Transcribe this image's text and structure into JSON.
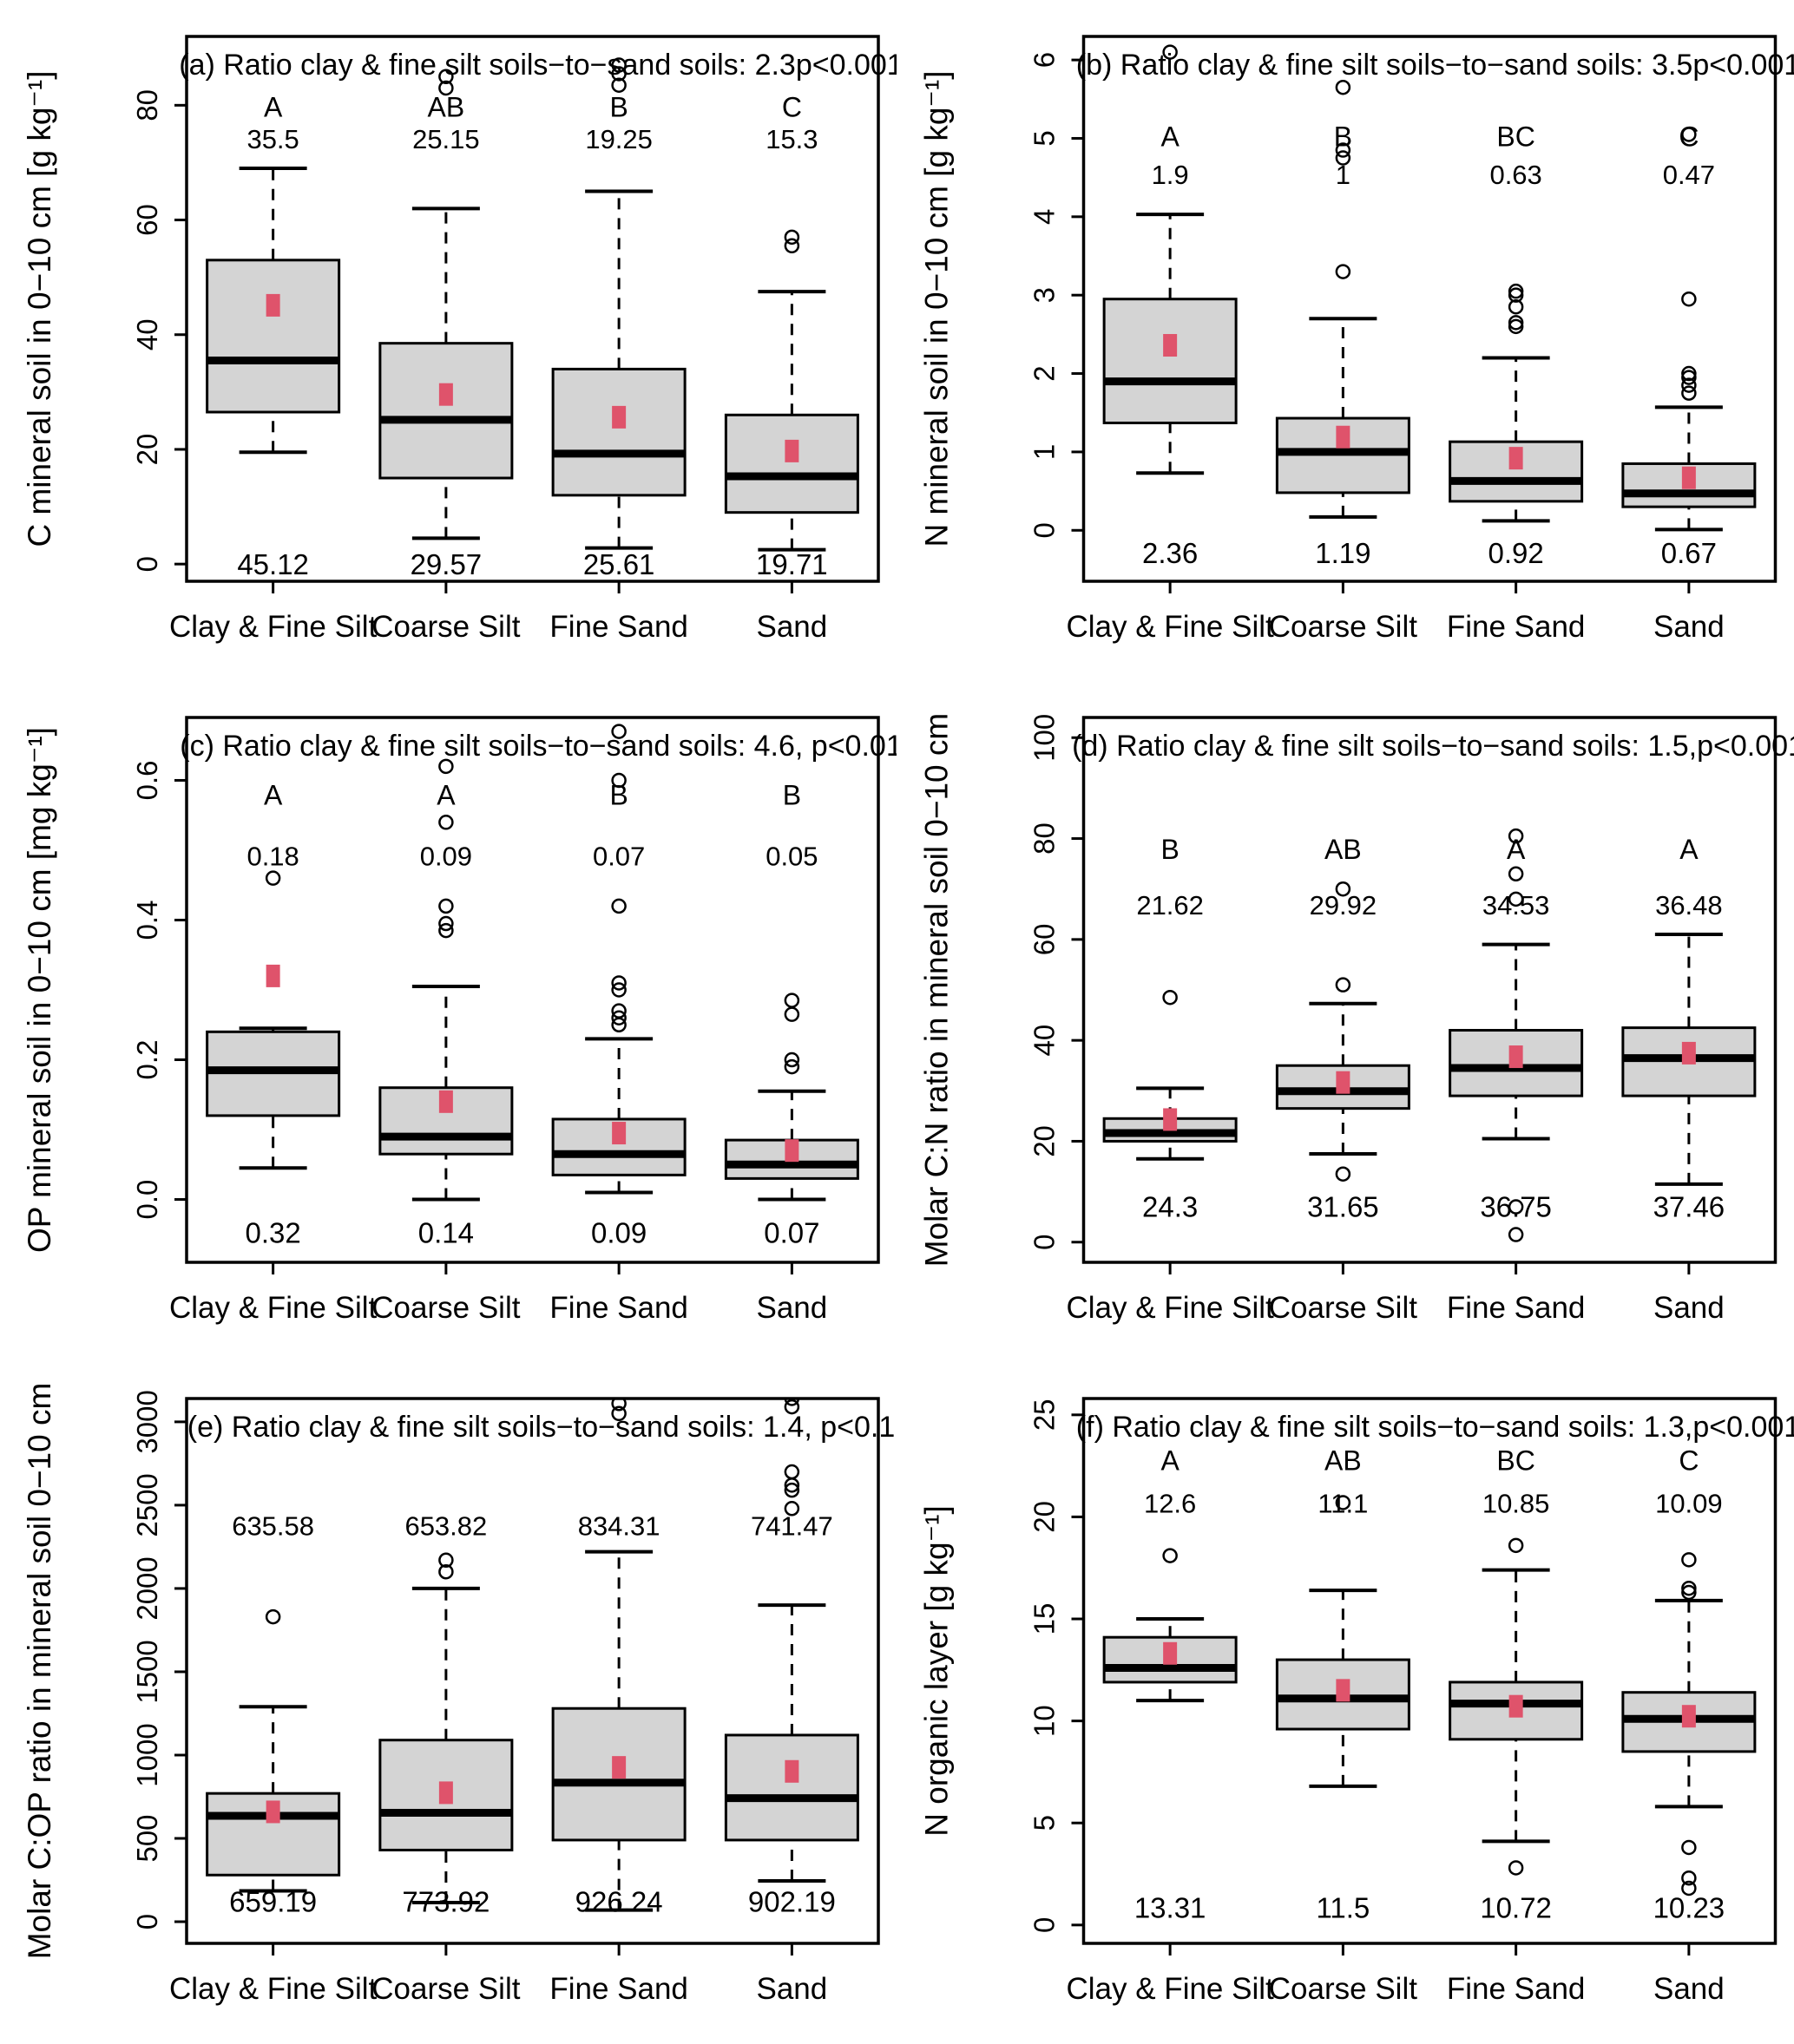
{
  "figure": {
    "categories": [
      "Clay & Fine Silt",
      "Coarse Silt",
      "Fine Sand",
      "Sand"
    ],
    "style": {
      "box_fill": "#d4d4d4",
      "line_color": "#000000",
      "mean_color": "#df536b",
      "background": "#ffffff"
    }
  },
  "chart_data": [
    {
      "type": "boxplot",
      "panel": "a",
      "title": "(a)  Ratio clay & fine silt soils−to−sand soils: 2.3p<0.001",
      "ylabel": "C mineral soil in 0−10 cm [g  kg⁻¹]",
      "ylim": [
        -3,
        92
      ],
      "ytick_values": [
        0,
        20,
        40,
        60,
        80
      ],
      "ytick_labels": [
        "0",
        "20",
        "40",
        "60",
        "80"
      ],
      "letter_y": 78,
      "median_label_y": 72.5,
      "mean_label_y": -1.8,
      "groups": [
        {
          "category": "Clay & Fine Silt",
          "letter": "A",
          "median_label": "35.5",
          "mean_label": "45.12",
          "mean": 45.12,
          "stats": {
            "q1": 26.5,
            "median": 35.5,
            "q3": 53,
            "whisker_low": 19.5,
            "whisker_high": 69
          },
          "outliers": []
        },
        {
          "category": "Coarse Silt",
          "letter": "AB",
          "median_label": "25.15",
          "mean_label": "29.57",
          "mean": 29.57,
          "stats": {
            "q1": 15,
            "median": 25.15,
            "q3": 38.5,
            "whisker_low": 4.5,
            "whisker_high": 62
          },
          "outliers": [
            83,
            85
          ]
        },
        {
          "category": "Fine Sand",
          "letter": "B",
          "median_label": "19.25",
          "mean_label": "25.61",
          "mean": 25.61,
          "stats": {
            "q1": 12,
            "median": 19.25,
            "q3": 34,
            "whisker_low": 2.8,
            "whisker_high": 65
          },
          "outliers": [
            83.5,
            85.5,
            87
          ]
        },
        {
          "category": "Sand",
          "letter": "C",
          "median_label": "15.3",
          "mean_label": "19.71",
          "mean": 19.71,
          "stats": {
            "q1": 9,
            "median": 15.3,
            "q3": 26,
            "whisker_low": 2.5,
            "whisker_high": 47.5
          },
          "outliers": [
            55.5,
            57
          ]
        }
      ]
    },
    {
      "type": "boxplot",
      "panel": "b",
      "title": "(b)  Ratio clay & fine silt soils−to−sand soils: 3.5p<0.001",
      "ylabel": "N mineral soil in 0−10 cm [g  kg⁻¹]",
      "ylim": [
        -0.65,
        6.3
      ],
      "ytick_values": [
        0,
        1,
        2,
        3,
        4,
        5,
        6
      ],
      "ytick_labels": [
        "0",
        "1",
        "2",
        "3",
        "4",
        "5",
        "6"
      ],
      "letter_y": 4.9,
      "median_label_y": 4.42,
      "mean_label_y": -0.42,
      "groups": [
        {
          "category": "Clay & Fine Silt",
          "letter": "A",
          "median_label": "1.9",
          "mean_label": "2.36",
          "mean": 2.36,
          "stats": {
            "q1": 1.37,
            "median": 1.9,
            "q3": 2.95,
            "whisker_low": 0.73,
            "whisker_high": 4.03
          },
          "outliers": [
            6.1
          ]
        },
        {
          "category": "Coarse Silt",
          "letter": "B",
          "median_label": "1",
          "mean_label": "1.19",
          "mean": 1.19,
          "stats": {
            "q1": 0.48,
            "median": 1.0,
            "q3": 1.43,
            "whisker_low": 0.17,
            "whisker_high": 2.7
          },
          "outliers": [
            3.3,
            4.75,
            4.85,
            5.65
          ]
        },
        {
          "category": "Fine Sand",
          "letter": "BC",
          "median_label": "0.63",
          "mean_label": "0.92",
          "mean": 0.92,
          "stats": {
            "q1": 0.37,
            "median": 0.63,
            "q3": 1.13,
            "whisker_low": 0.12,
            "whisker_high": 2.2
          },
          "outliers": [
            2.6,
            2.65,
            2.85,
            3.0,
            3.05
          ]
        },
        {
          "category": "Sand",
          "letter": "C",
          "median_label": "0.47",
          "mean_label": "0.67",
          "mean": 0.67,
          "stats": {
            "q1": 0.3,
            "median": 0.47,
            "q3": 0.85,
            "whisker_low": 0.01,
            "whisker_high": 1.57
          },
          "outliers": [
            1.75,
            1.85,
            1.95,
            2.0,
            2.95,
            5.05
          ]
        }
      ]
    },
    {
      "type": "boxplot",
      "panel": "c",
      "title": "(c)  Ratio clay & fine silt soils−to−sand soils: 4.6, p<0.01",
      "ylabel": "OP mineral soil in 0−10 cm [mg  kg⁻¹]",
      "ylim": [
        -0.09,
        0.69
      ],
      "ytick_values": [
        0.0,
        0.2,
        0.4,
        0.6
      ],
      "ytick_labels": [
        "0.0",
        "0.2",
        "0.4",
        "0.6"
      ],
      "letter_y": 0.565,
      "median_label_y": 0.478,
      "mean_label_y": -0.062,
      "groups": [
        {
          "category": "Clay & Fine Silt",
          "letter": "A",
          "median_label": "0.18",
          "mean_label": "0.32",
          "mean": 0.32,
          "stats": {
            "q1": 0.12,
            "median": 0.185,
            "q3": 0.24,
            "whisker_low": 0.045,
            "whisker_high": 0.245
          },
          "outliers": [
            0.46
          ]
        },
        {
          "category": "Coarse Silt",
          "letter": "A",
          "median_label": "0.09",
          "mean_label": "0.14",
          "mean": 0.14,
          "stats": {
            "q1": 0.065,
            "median": 0.09,
            "q3": 0.16,
            "whisker_low": 0.0,
            "whisker_high": 0.305
          },
          "outliers": [
            0.385,
            0.395,
            0.42,
            0.54,
            0.62
          ]
        },
        {
          "category": "Fine Sand",
          "letter": "B",
          "median_label": "0.07",
          "mean_label": "0.09",
          "mean": 0.095,
          "stats": {
            "q1": 0.035,
            "median": 0.065,
            "q3": 0.115,
            "whisker_low": 0.01,
            "whisker_high": 0.23
          },
          "outliers": [
            0.25,
            0.26,
            0.27,
            0.3,
            0.31,
            0.42,
            0.6,
            0.67
          ]
        },
        {
          "category": "Sand",
          "letter": "B",
          "median_label": "0.05",
          "mean_label": "0.07",
          "mean": 0.07,
          "stats": {
            "q1": 0.03,
            "median": 0.05,
            "q3": 0.085,
            "whisker_low": 0.0,
            "whisker_high": 0.155
          },
          "outliers": [
            0.19,
            0.2,
            0.265,
            0.285
          ]
        }
      ]
    },
    {
      "type": "boxplot",
      "panel": "d",
      "title": "(d)  Ratio clay & fine silt soils−to−sand soils: 1.5,p<0.001",
      "ylabel": "Molar C:N ratio in mineral soil 0−10 cm",
      "ylim": [
        -4,
        104
      ],
      "ytick_values": [
        0,
        20,
        40,
        60,
        80,
        100
      ],
      "ytick_labels": [
        "0",
        "20",
        "40",
        "60",
        "80",
        "100"
      ],
      "letter_y": 76,
      "median_label_y": 65,
      "mean_label_y": 5,
      "groups": [
        {
          "category": "Clay & Fine Silt",
          "letter": "B",
          "median_label": "21.62",
          "mean_label": "24.3",
          "mean": 24.3,
          "stats": {
            "q1": 20,
            "median": 21.62,
            "q3": 24.5,
            "whisker_low": 16.5,
            "whisker_high": 30.5
          },
          "outliers": [
            48.5
          ]
        },
        {
          "category": "Coarse Silt",
          "letter": "AB",
          "median_label": "29.92",
          "mean_label": "31.65",
          "mean": 31.65,
          "stats": {
            "q1": 26.5,
            "median": 29.92,
            "q3": 35,
            "whisker_low": 17.5,
            "whisker_high": 47.3
          },
          "outliers": [
            13.5,
            51,
            70
          ]
        },
        {
          "category": "Fine Sand",
          "letter": "A",
          "median_label": "34.53",
          "mean_label": "36.75",
          "mean": 36.75,
          "stats": {
            "q1": 29,
            "median": 34.53,
            "q3": 42,
            "whisker_low": 20.5,
            "whisker_high": 59
          },
          "outliers": [
            1.5,
            7,
            68,
            73,
            80.5
          ]
        },
        {
          "category": "Sand",
          "letter": "A",
          "median_label": "36.48",
          "mean_label": "37.46",
          "mean": 37.46,
          "stats": {
            "q1": 29,
            "median": 36.48,
            "q3": 42.5,
            "whisker_low": 11.5,
            "whisker_high": 61
          },
          "outliers": []
        }
      ]
    },
    {
      "type": "boxplot",
      "panel": "e",
      "title": "(e)  Ratio clay & fine silt soils−to−sand soils: 1.4,  p<0.1",
      "ylabel": "Molar C:OP ratio in mineral soil 0−10 cm",
      "ylim": [
        -130,
        3140
      ],
      "ytick_values": [
        0,
        500,
        1000,
        1500,
        2000,
        2500,
        3000
      ],
      "ytick_labels": [
        "0",
        "500",
        "1000",
        "1500",
        "2000",
        "2500",
        "3000"
      ],
      "letter_y": null,
      "median_label_y": 2320,
      "mean_label_y": 60,
      "groups": [
        {
          "category": "Clay & Fine Silt",
          "letter": null,
          "median_label": "635.58",
          "mean_label": "659.19",
          "mean": 659.19,
          "stats": {
            "q1": 280,
            "median": 635.58,
            "q3": 770,
            "whisker_low": 185,
            "whisker_high": 1290
          },
          "outliers": [
            1830
          ]
        },
        {
          "category": "Coarse Silt",
          "letter": null,
          "median_label": "653.82",
          "mean_label": "773.92",
          "mean": 773.92,
          "stats": {
            "q1": 430,
            "median": 653.82,
            "q3": 1090,
            "whisker_low": 115,
            "whisker_high": 2000
          },
          "outliers": [
            2100,
            2170
          ]
        },
        {
          "category": "Fine Sand",
          "letter": null,
          "median_label": "834.31",
          "mean_label": "926.24",
          "mean": 926.24,
          "stats": {
            "q1": 490,
            "median": 834.31,
            "q3": 1280,
            "whisker_low": 70,
            "whisker_high": 2220
          },
          "outliers": [
            3050,
            3110
          ]
        },
        {
          "category": "Sand",
          "letter": null,
          "median_label": "741.47",
          "mean_label": "902.19",
          "mean": 902.19,
          "stats": {
            "q1": 490,
            "median": 741.47,
            "q3": 1120,
            "whisker_low": 245,
            "whisker_high": 1900
          },
          "outliers": [
            2480,
            2590,
            2620,
            2700,
            3090,
            3140
          ]
        }
      ]
    },
    {
      "type": "boxplot",
      "panel": "f",
      "title": "(f)  Ratio clay & fine silt soils−to−sand soils: 1.3,p<0.001",
      "ylabel": "N organic layer [g  kg⁻¹]",
      "ylim": [
        -0.9,
        25.8
      ],
      "ytick_values": [
        0,
        5,
        10,
        15,
        20,
        25
      ],
      "ytick_labels": [
        "0",
        "5",
        "10",
        "15",
        "20",
        "25"
      ],
      "letter_y": 22.3,
      "median_label_y": 20.2,
      "mean_label_y": 0.35,
      "groups": [
        {
          "category": "Clay & Fine Silt",
          "letter": "A",
          "median_label": "12.6",
          "mean_label": "13.31",
          "mean": 13.31,
          "stats": {
            "q1": 11.9,
            "median": 12.6,
            "q3": 14.1,
            "whisker_low": 11.0,
            "whisker_high": 15.0
          },
          "outliers": [
            18.1
          ]
        },
        {
          "category": "Coarse Silt",
          "letter": "AB",
          "median_label": "11.1",
          "mean_label": "11.5",
          "mean": 11.5,
          "stats": {
            "q1": 9.6,
            "median": 11.1,
            "q3": 13.0,
            "whisker_low": 6.8,
            "whisker_high": 16.4
          },
          "outliers": [
            20.7
          ]
        },
        {
          "category": "Fine Sand",
          "letter": "BC",
          "median_label": "10.85",
          "mean_label": "10.72",
          "mean": 10.72,
          "stats": {
            "q1": 9.1,
            "median": 10.85,
            "q3": 11.9,
            "whisker_low": 4.1,
            "whisker_high": 17.4
          },
          "outliers": [
            2.8,
            18.6
          ]
        },
        {
          "category": "Sand",
          "letter": "C",
          "median_label": "10.09",
          "mean_label": "10.23",
          "mean": 10.23,
          "stats": {
            "q1": 8.5,
            "median": 10.1,
            "q3": 11.4,
            "whisker_low": 5.8,
            "whisker_high": 15.9
          },
          "outliers": [
            1.8,
            2.3,
            3.8,
            16.3,
            16.5,
            17.9
          ]
        }
      ]
    }
  ]
}
